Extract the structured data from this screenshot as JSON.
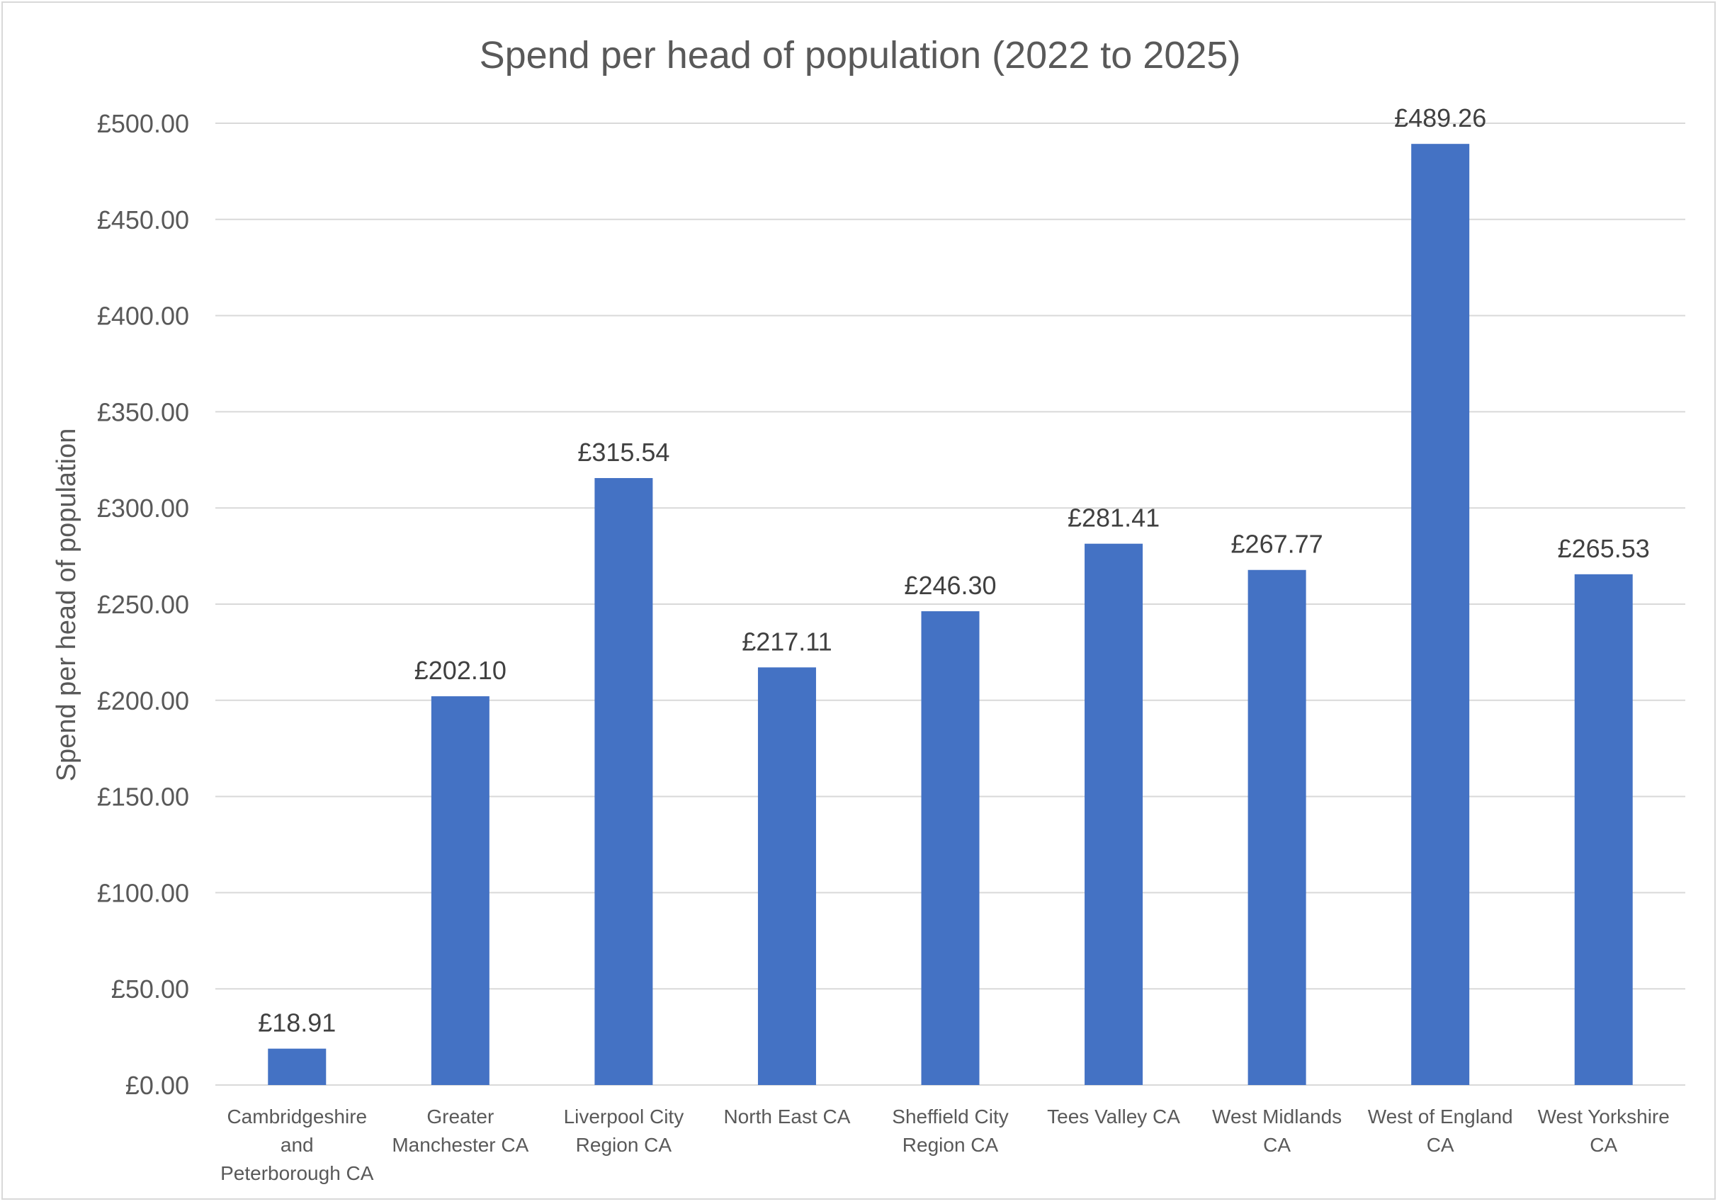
{
  "chart_data": {
    "type": "bar",
    "title": "Spend per head of population (2022 to 2025)",
    "xlabel": "",
    "ylabel": "Spend per head of population",
    "categories": [
      "Cambridgeshire and Peterborough CA",
      "Greater Manchester CA",
      "Liverpool City Region CA",
      "North East CA",
      "Sheffield City Region CA",
      "Tees Valley CA",
      "West Midlands CA",
      "West of England CA",
      "West Yorkshire CA"
    ],
    "category_lines": [
      [
        "Cambridgeshire",
        "and",
        "Peterborough CA"
      ],
      [
        "Greater",
        "Manchester CA"
      ],
      [
        "Liverpool City",
        "Region CA"
      ],
      [
        "North East CA"
      ],
      [
        "Sheffield City",
        "Region CA"
      ],
      [
        "Tees Valley CA"
      ],
      [
        "West Midlands",
        "CA"
      ],
      [
        "West of England",
        "CA"
      ],
      [
        "West Yorkshire",
        "CA"
      ]
    ],
    "values": [
      18.91,
      202.1,
      315.54,
      217.11,
      246.3,
      281.41,
      267.77,
      489.26,
      265.53
    ],
    "value_labels": [
      "£18.91",
      "£202.10",
      "£315.54",
      "£217.11",
      "£246.30",
      "£281.41",
      "£267.77",
      "£489.26",
      "£265.53"
    ],
    "ylim": [
      0,
      500
    ],
    "yticks": [
      0,
      50,
      100,
      150,
      200,
      250,
      300,
      350,
      400,
      450,
      500
    ],
    "ytick_labels": [
      "£0.00",
      "£50.00",
      "£100.00",
      "£150.00",
      "£200.00",
      "£250.00",
      "£300.00",
      "£350.00",
      "£400.00",
      "£450.00",
      "£500.00"
    ],
    "grid": true,
    "legend": "none",
    "bar_color": "#4472c4"
  }
}
